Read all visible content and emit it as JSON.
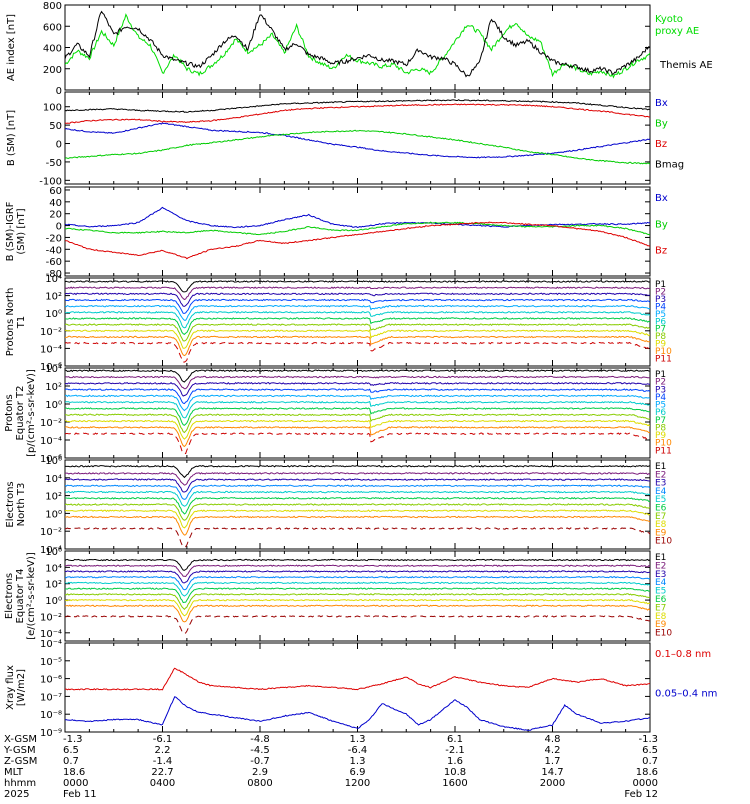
{
  "chart_data": [
    {
      "type": "line",
      "id": "ae",
      "ylabel": "AE index [nT]",
      "ylim": [
        0,
        800
      ],
      "yticks": [
        "800",
        "600",
        "400",
        "200",
        "0"
      ],
      "series": [
        {
          "name": "Kyoto proxy AE",
          "color": "#00dd00",
          "x": [
            0,
            0.5,
            1,
            1.5,
            2,
            2.5,
            3,
            3.5,
            4,
            4.5,
            5,
            5.5,
            6,
            6.5,
            7,
            7.5,
            8,
            8.5,
            9,
            9.5,
            10,
            10.5,
            11,
            11.5,
            12,
            12.5,
            13,
            13.5,
            14,
            14.5,
            15,
            15.5,
            16,
            16.5,
            17,
            17.5,
            18,
            18.5,
            19,
            19.5,
            20,
            20.5,
            21,
            21.5,
            22,
            22.5,
            23,
            23.5,
            24
          ],
          "values": [
            240,
            370,
            300,
            550,
            420,
            700,
            500,
            420,
            160,
            330,
            200,
            150,
            230,
            330,
            480,
            360,
            420,
            520,
            350,
            600,
            320,
            250,
            200,
            330,
            280,
            250,
            220,
            240,
            160,
            200,
            160,
            300,
            460,
            620,
            540,
            380,
            540,
            640,
            500,
            460,
            150,
            250,
            200,
            150,
            180,
            130,
            200,
            280,
            330
          ]
        },
        {
          "name": "Themis AE",
          "color": "#000000",
          "x": [
            0,
            0.5,
            1,
            1.5,
            2,
            2.5,
            3,
            3.5,
            4,
            4.5,
            5,
            5.5,
            6,
            6.5,
            7,
            7.5,
            8,
            8.5,
            9,
            9.5,
            10,
            10.5,
            11,
            11.5,
            12,
            12.5,
            13,
            13.5,
            14,
            14.5,
            15,
            15.5,
            16,
            16.5,
            17,
            17.5,
            18,
            18.5,
            19,
            19.5,
            20,
            20.5,
            21,
            21.5,
            22,
            22.5,
            23,
            23.5,
            24
          ],
          "values": [
            300,
            430,
            320,
            750,
            520,
            600,
            580,
            470,
            330,
            280,
            250,
            220,
            320,
            450,
            520,
            380,
            720,
            560,
            380,
            440,
            330,
            300,
            250,
            270,
            300,
            330,
            280,
            270,
            240,
            380,
            310,
            300,
            240,
            130,
            250,
            680,
            500,
            420,
            460,
            360,
            270,
            240,
            220,
            180,
            200,
            160,
            230,
            300,
            420
          ]
        }
      ],
      "legend": [
        "Kyoto proxy AE",
        "Themis AE"
      ]
    },
    {
      "type": "line",
      "id": "b-sm",
      "ylabel": "B (SM) [nT]",
      "ylim": [
        -110,
        140
      ],
      "yticks": [
        "100",
        "50",
        "0",
        "-50",
        "-100"
      ],
      "series": [
        {
          "name": "Bx",
          "color": "#0000cc",
          "x": [
            0,
            1,
            2,
            3,
            4,
            5,
            6,
            7,
            8,
            9,
            10,
            11,
            12,
            13,
            14,
            15,
            16,
            17,
            18,
            19,
            20,
            21,
            22,
            23,
            24
          ],
          "values": [
            40,
            32,
            28,
            42,
            55,
            46,
            36,
            33,
            30,
            22,
            10,
            -2,
            -10,
            -20,
            -26,
            -32,
            -36,
            -38,
            -36,
            -32,
            -26,
            -18,
            -8,
            2,
            12
          ]
        },
        {
          "name": "By",
          "color": "#00cc00",
          "x": [
            0,
            1,
            2,
            3,
            4,
            5,
            6,
            7,
            8,
            9,
            10,
            11,
            12,
            13,
            14,
            15,
            16,
            17,
            18,
            19,
            20,
            21,
            22,
            23,
            24
          ],
          "values": [
            -40,
            -35,
            -30,
            -27,
            -18,
            -5,
            2,
            10,
            18,
            25,
            30,
            33,
            35,
            32,
            26,
            18,
            10,
            0,
            -10,
            -22,
            -30,
            -40,
            -47,
            -52,
            -55
          ]
        },
        {
          "name": "Bz",
          "color": "#dd0000",
          "x": [
            0,
            1,
            2,
            3,
            4,
            5,
            6,
            7,
            8,
            9,
            10,
            11,
            12,
            13,
            14,
            15,
            16,
            17,
            18,
            19,
            20,
            21,
            22,
            23,
            24
          ],
          "values": [
            55,
            62,
            65,
            65,
            60,
            58,
            62,
            70,
            80,
            90,
            95,
            98,
            100,
            102,
            104,
            105,
            106,
            106,
            105,
            104,
            100,
            94,
            88,
            80,
            72
          ]
        },
        {
          "name": "Bmag",
          "color": "#000000",
          "x": [
            0,
            1,
            2,
            3,
            4,
            5,
            6,
            7,
            8,
            9,
            10,
            11,
            12,
            13,
            14,
            15,
            16,
            17,
            18,
            19,
            20,
            21,
            22,
            23,
            24
          ],
          "values": [
            90,
            92,
            94,
            90,
            88,
            86,
            90,
            96,
            102,
            108,
            110,
            112,
            114,
            115,
            116,
            117,
            118,
            117,
            116,
            115,
            113,
            110,
            104,
            98,
            92
          ]
        }
      ],
      "legend": [
        "Bx",
        "By",
        "Bz",
        "Bmag"
      ]
    },
    {
      "type": "line",
      "id": "b-igrf",
      "ylabel": "B (SM)-IGRF (SM) [nT]",
      "ylim": [
        -85,
        65
      ],
      "yticks": [
        "60",
        "40",
        "20",
        "0",
        "-20",
        "-40",
        "-60",
        "-80"
      ],
      "series": [
        {
          "name": "Bx",
          "color": "#0000cc",
          "x": [
            0,
            1,
            2,
            3,
            4,
            5,
            6,
            7,
            8,
            9,
            10,
            11,
            12,
            13,
            14,
            15,
            16,
            17,
            18,
            19,
            20,
            21,
            22,
            23,
            24
          ],
          "values": [
            2,
            -2,
            0,
            5,
            30,
            8,
            0,
            -3,
            0,
            10,
            18,
            2,
            -3,
            3,
            5,
            4,
            2,
            0,
            -2,
            0,
            2,
            2,
            3,
            2,
            5
          ]
        },
        {
          "name": "By",
          "color": "#00cc00",
          "x": [
            0,
            1,
            2,
            3,
            4,
            5,
            6,
            7,
            8,
            9,
            10,
            11,
            12,
            13,
            14,
            15,
            16,
            17,
            18,
            19,
            20,
            21,
            22,
            23,
            24
          ],
          "values": [
            -5,
            -8,
            -12,
            -12,
            -10,
            -12,
            -8,
            -12,
            -15,
            -10,
            -2,
            -8,
            -8,
            -2,
            3,
            5,
            5,
            3,
            0,
            -2,
            -2,
            0,
            0,
            -5,
            -15
          ]
        },
        {
          "name": "Bz",
          "color": "#dd0000",
          "x": [
            0,
            1,
            2,
            3,
            4,
            5,
            6,
            7,
            8,
            9,
            10,
            11,
            12,
            13,
            14,
            15,
            16,
            17,
            18,
            19,
            20,
            21,
            22,
            23,
            24
          ],
          "values": [
            -25,
            -40,
            -45,
            -50,
            -42,
            -55,
            -40,
            -35,
            -25,
            -30,
            -25,
            -20,
            -15,
            -10,
            -5,
            0,
            2,
            5,
            5,
            2,
            0,
            -5,
            -10,
            -20,
            -35
          ]
        }
      ],
      "legend": [
        "Bx",
        "By",
        "Bz"
      ]
    },
    {
      "type": "line",
      "id": "protons-n",
      "ylabel": "Protons North T1",
      "yscale": "log",
      "ylim": [
        -6,
        4
      ],
      "yticks": [
        "10⁴",
        "10²",
        "10⁰",
        "10⁻²",
        "10⁻⁴",
        "10⁻⁶"
      ],
      "levels": [
        3.6,
        2.9,
        2.2,
        1.5,
        0.8,
        0.1,
        -0.6,
        -1.3,
        -2.0,
        -2.7,
        -3.4
      ],
      "legend": [
        "P1",
        "P2",
        "P3",
        "P4",
        "P5",
        "P6",
        "P7",
        "P8",
        "P9",
        "P10",
        "P11"
      ],
      "colors": [
        "#000000",
        "#7a1a7a",
        "#2200aa",
        "#0044ff",
        "#00aaff",
        "#00cccc",
        "#00cc44",
        "#88cc00",
        "#dddd00",
        "#ff8800",
        "#cc0000"
      ]
    },
    {
      "type": "line",
      "id": "protons-eq",
      "ylabel": "Protons Equator T2 [p/(cm²-s-sr-keV)]",
      "yscale": "log",
      "ylim": [
        -6,
        4
      ],
      "yticks": [
        "10⁴",
        "10²",
        "10⁰",
        "10⁻²",
        "10⁻⁴",
        "10⁻⁶"
      ],
      "levels": [
        3.7,
        3.0,
        2.3,
        1.6,
        0.9,
        0.2,
        -0.5,
        -1.2,
        -1.9,
        -2.6,
        -3.3
      ],
      "legend": [
        "P1",
        "P2",
        "P3",
        "P4",
        "P5",
        "P6",
        "P7",
        "P8",
        "P9",
        "P10",
        "P11"
      ],
      "colors": [
        "#000000",
        "#7a1a7a",
        "#2200aa",
        "#0044ff",
        "#00aaff",
        "#00cccc",
        "#00cc44",
        "#88cc00",
        "#dddd00",
        "#ff8800",
        "#cc0000"
      ]
    },
    {
      "type": "line",
      "id": "electrons-n",
      "ylabel": "Electrons North T3",
      "yscale": "log",
      "ylim": [
        -4,
        6
      ],
      "yticks": [
        "10⁶",
        "10⁴",
        "10²",
        "10⁰",
        "10⁻²",
        "10⁻⁴"
      ],
      "levels": [
        5.3,
        4.5,
        3.8,
        3.1,
        2.4,
        1.7,
        1.0,
        0.3,
        -0.4,
        -1.7
      ],
      "legend": [
        "E1",
        "E2",
        "E3",
        "E4",
        "E5",
        "E6",
        "E7",
        "E8",
        "E9",
        "E10"
      ],
      "colors": [
        "#000000",
        "#7a1a7a",
        "#2200aa",
        "#0088ff",
        "#00cccc",
        "#00cc44",
        "#88cc00",
        "#dddd00",
        "#ff8800",
        "#990000"
      ]
    },
    {
      "type": "line",
      "id": "electrons-eq",
      "ylabel": "Electrons Equator T4 [e/(cm²-s-sr-keV)]",
      "yscale": "log",
      "ylim": [
        -5,
        6
      ],
      "yticks": [
        "10⁶",
        "10⁴",
        "10²",
        "10⁰",
        "10⁻²",
        "10⁻⁴"
      ],
      "levels": [
        4.9,
        4.2,
        3.5,
        2.8,
        2.1,
        1.4,
        0.7,
        0.0,
        -0.7,
        -2.0
      ],
      "legend": [
        "E1",
        "E2",
        "E3",
        "E4",
        "E5",
        "E6",
        "E7",
        "E8",
        "E9",
        "E10"
      ],
      "colors": [
        "#000000",
        "#7a1a7a",
        "#2200aa",
        "#0088ff",
        "#00cccc",
        "#00cc44",
        "#88cc00",
        "#dddd00",
        "#ff8800",
        "#990000"
      ]
    },
    {
      "type": "line",
      "id": "xray",
      "ylabel": "Xray flux [W/m2]",
      "yscale": "log",
      "ylim": [
        -9,
        -4
      ],
      "yticks": [
        "10⁻⁴",
        "10⁻⁵",
        "10⁻⁶",
        "10⁻⁷",
        "10⁻⁸",
        "10⁻⁹"
      ],
      "series": [
        {
          "name": "0.1-0.8 nm",
          "color": "#dd0000",
          "x": [
            0,
            1,
            2,
            3,
            4,
            4.5,
            5,
            5.5,
            6,
            7,
            8,
            9,
            10,
            11,
            12,
            13,
            14,
            14.5,
            15,
            16,
            17,
            18,
            19,
            20,
            21,
            22,
            23,
            24
          ],
          "values": [
            -6.6,
            -6.6,
            -6.6,
            -6.6,
            -6.6,
            -5.4,
            -5.8,
            -6.2,
            -6.4,
            -6.5,
            -6.6,
            -6.5,
            -6.4,
            -6.5,
            -6.6,
            -6.3,
            -5.9,
            -6.3,
            -6.5,
            -5.9,
            -6.2,
            -6.4,
            -6.5,
            -6.0,
            -6.2,
            -6.0,
            -6.4,
            -6.3
          ]
        },
        {
          "name": "0.05-0.4 nm",
          "color": "#0000cc",
          "x": [
            0,
            1,
            2,
            3,
            4,
            4.5,
            5,
            5.5,
            6,
            7,
            8,
            9,
            10,
            11,
            12,
            12.5,
            13,
            14,
            14.5,
            15,
            16,
            16.5,
            17,
            18,
            19,
            20,
            20.5,
            21,
            22,
            23,
            24
          ],
          "values": [
            -8.3,
            -8.4,
            -8.3,
            -8.3,
            -8.6,
            -7.0,
            -7.6,
            -7.9,
            -8.0,
            -8.2,
            -8.4,
            -8.1,
            -7.9,
            -8.4,
            -8.8,
            -8.3,
            -7.4,
            -8.0,
            -8.6,
            -8.3,
            -7.2,
            -7.6,
            -8.3,
            -8.7,
            -8.9,
            -8.6,
            -7.5,
            -8.0,
            -8.5,
            -8.4,
            -8.2
          ]
        }
      ],
      "legend": [
        "0.1–0.8 nm",
        "0.05–0.4 nm"
      ]
    }
  ],
  "x_axis": {
    "row_labels": [
      "X-GSM",
      "Y-GSM",
      "Z-GSM",
      "MLT",
      "hhmm",
      "2025"
    ],
    "columns": [
      {
        "x_hours": 0,
        "values": [
          "-1.3",
          "6.5",
          "0.7",
          "18.6",
          "0000",
          "Feb 11"
        ]
      },
      {
        "x_hours": 4,
        "values": [
          "-6.1",
          "2.2",
          "-1.4",
          "22.7",
          "0400",
          ""
        ]
      },
      {
        "x_hours": 8,
        "values": [
          "-4.8",
          "-4.5",
          "-0.7",
          "2.9",
          "0800",
          ""
        ]
      },
      {
        "x_hours": 12,
        "values": [
          "1.3",
          "-6.4",
          "1.3",
          "6.9",
          "1200",
          ""
        ]
      },
      {
        "x_hours": 16,
        "values": [
          "6.1",
          "-2.1",
          "1.6",
          "10.8",
          "1600",
          ""
        ]
      },
      {
        "x_hours": 20,
        "values": [
          "4.8",
          "4.2",
          "1.7",
          "14.7",
          "2000",
          ""
        ]
      },
      {
        "x_hours": 24,
        "values": [
          "-1.3",
          "6.5",
          "0.7",
          "18.6",
          "0000",
          "Feb 12"
        ]
      }
    ]
  }
}
